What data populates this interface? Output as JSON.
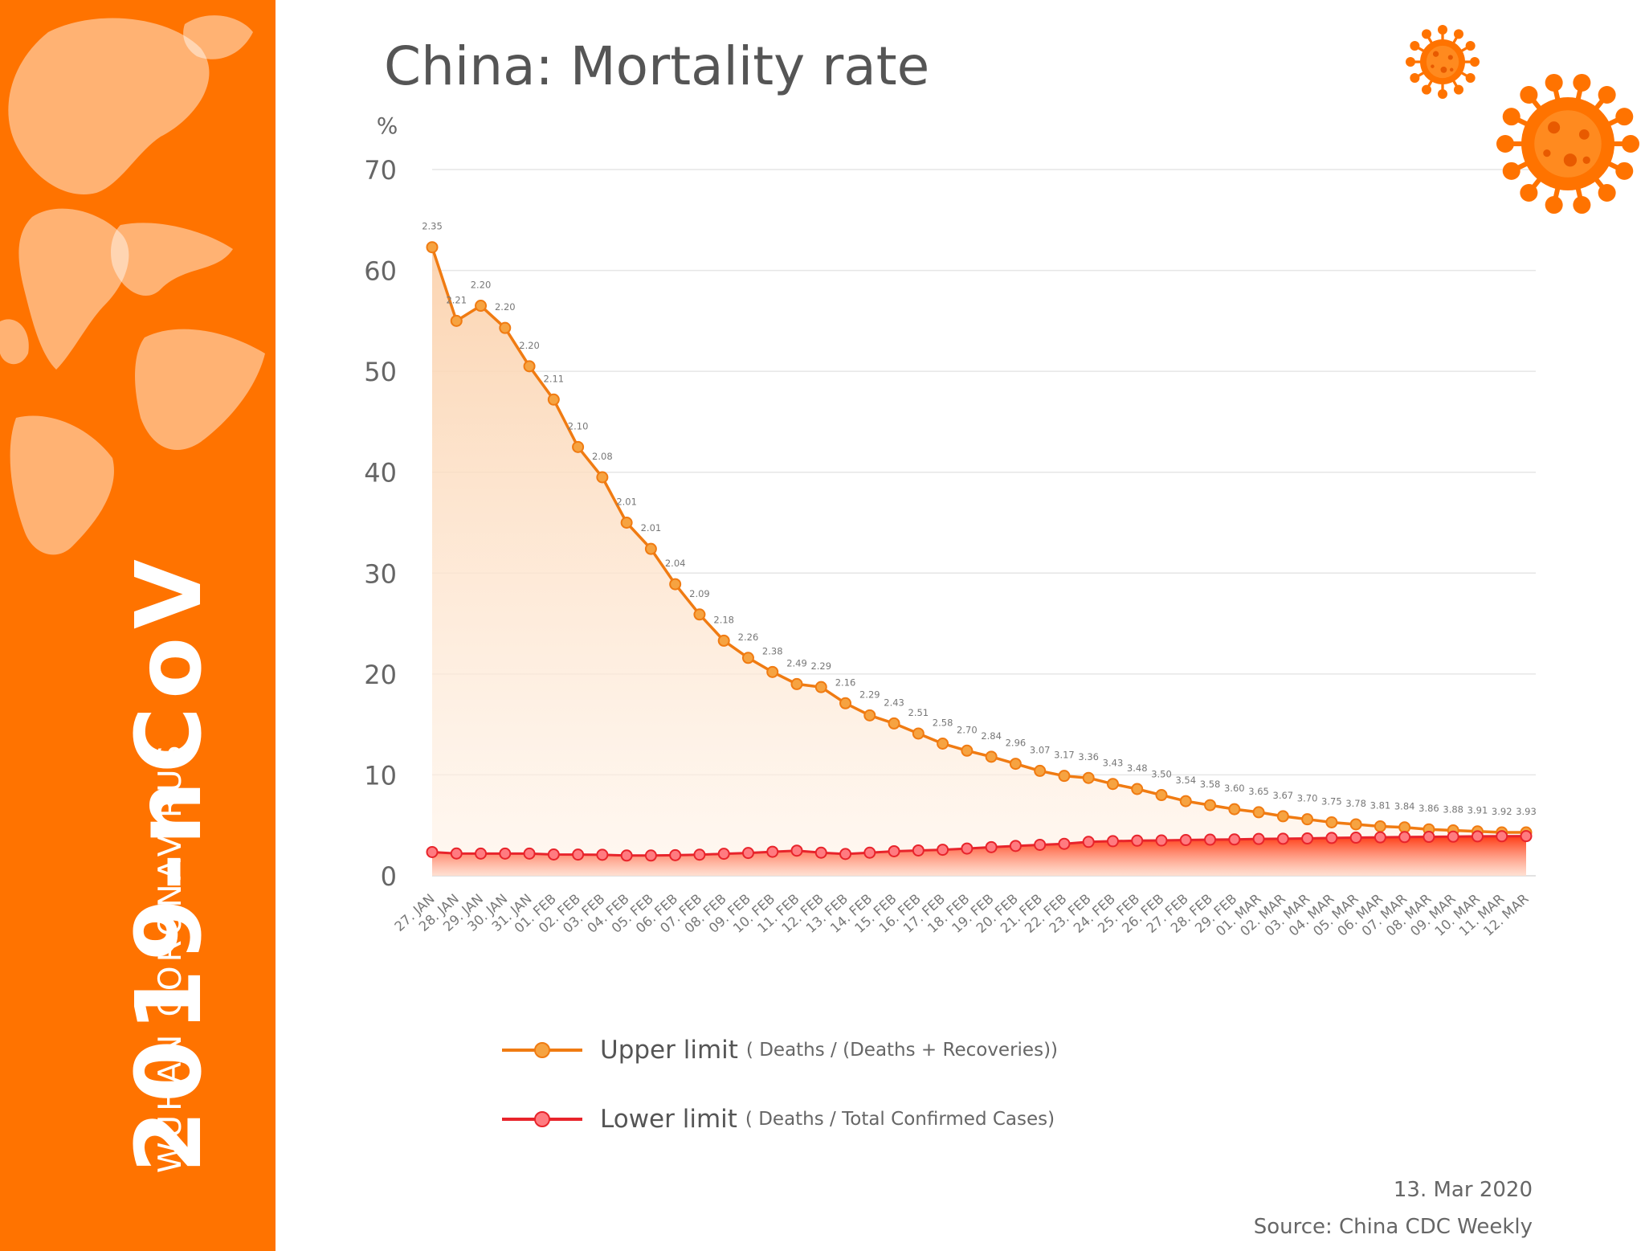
{
  "sidebar": {
    "title": "2019-nCoV",
    "subtitle": "WUHAN CORONAVIRUS"
  },
  "colors": {
    "brand_orange": "#ff7300",
    "upper_line": "#f07b12",
    "upper_marker": "#f6a341",
    "lower_line": "#e8242b",
    "lower_marker": "#ff7b80",
    "grid": "#e6e6e6"
  },
  "icons": [
    "world-map-icon",
    "virus-icon"
  ],
  "footer": {
    "date": "13. Mar 2020",
    "source": "Source: China CDC Weekly"
  },
  "chart_data": {
    "type": "line",
    "title": "China: Mortality rate",
    "ylabel": "%",
    "ylim": [
      0,
      70
    ],
    "yticks": [
      0,
      10,
      20,
      30,
      40,
      50,
      60,
      70
    ],
    "grid": true,
    "legend_placement": "bottom",
    "categories": [
      "27. JAN",
      "28. JAN",
      "29. JAN",
      "30. JAN",
      "31. JAN",
      "01. FEB",
      "02. FEB",
      "03. FEB",
      "04. FEB",
      "05. FEB",
      "06. FEB",
      "07. FEB",
      "08. FEB",
      "09. FEB",
      "10. FEB",
      "11. FEB",
      "12. FEB",
      "13. FEB",
      "14. FEB",
      "15. FEB",
      "16. FEB",
      "17. FEB",
      "18. FEB",
      "19. FEB",
      "20. FEB",
      "21. FEB",
      "22. FEB",
      "23. FEB",
      "24. FEB",
      "25. FEB",
      "26. FEB",
      "27. FEB",
      "28. FEB",
      "29. FEB",
      "01. MAR",
      "02. MAR",
      "03. MAR",
      "04. MAR",
      "05. MAR",
      "06. MAR",
      "07. MAR",
      "08. MAR",
      "09. MAR",
      "10. MAR",
      "11. MAR",
      "12. MAR"
    ],
    "series": [
      {
        "name": "Upper limit",
        "note": "( Deaths / (Deaths + Recoveries))",
        "values": [
          62.3,
          55.0,
          56.5,
          54.3,
          50.5,
          47.2,
          42.5,
          39.5,
          35.0,
          32.4,
          28.9,
          25.9,
          23.3,
          21.6,
          20.2,
          19.0,
          18.7,
          17.1,
          15.9,
          15.1,
          14.1,
          13.1,
          12.4,
          11.8,
          11.1,
          10.4,
          9.9,
          9.7,
          9.1,
          8.6,
          8.0,
          7.4,
          7.0,
          6.6,
          6.3,
          5.9,
          5.6,
          5.3,
          5.1,
          4.9,
          4.8,
          4.6,
          4.5,
          4.4,
          4.3,
          4.3
        ]
      },
      {
        "name": "Lower limit",
        "note": "( Deaths / Total Confirmed Cases)",
        "values": [
          2.35,
          2.21,
          2.2,
          2.2,
          2.2,
          2.11,
          2.1,
          2.08,
          2.01,
          2.01,
          2.04,
          2.09,
          2.18,
          2.26,
          2.38,
          2.49,
          2.29,
          2.16,
          2.29,
          2.43,
          2.51,
          2.58,
          2.7,
          2.84,
          2.96,
          3.07,
          3.17,
          3.36,
          3.43,
          3.48,
          3.5,
          3.54,
          3.58,
          3.6,
          3.65,
          3.67,
          3.7,
          3.75,
          3.78,
          3.81,
          3.84,
          3.86,
          3.88,
          3.91,
          3.92,
          3.93
        ],
        "data_labels": [
          "2.35",
          "2.21",
          "2.20",
          "2.20",
          "2.20",
          "2.11",
          "2.10",
          "2.08",
          "2.01",
          "2.01",
          "2.04",
          "2.09",
          "2.18",
          "2.26",
          "2.38",
          "2.49",
          "2.29",
          "2.16",
          "2.29",
          "2.43",
          "2.51",
          "2.58",
          "2.70",
          "2.84",
          "2.96",
          "3.07",
          "3.17",
          "3.36",
          "3.43",
          "3.48",
          "3.50",
          "3.54",
          "3.58",
          "3.60",
          "3.65",
          "3.67",
          "3.70",
          "3.75",
          "3.78",
          "3.81",
          "3.84",
          "3.86",
          "3.88",
          "3.91",
          "3.92",
          "3.93"
        ]
      }
    ]
  }
}
